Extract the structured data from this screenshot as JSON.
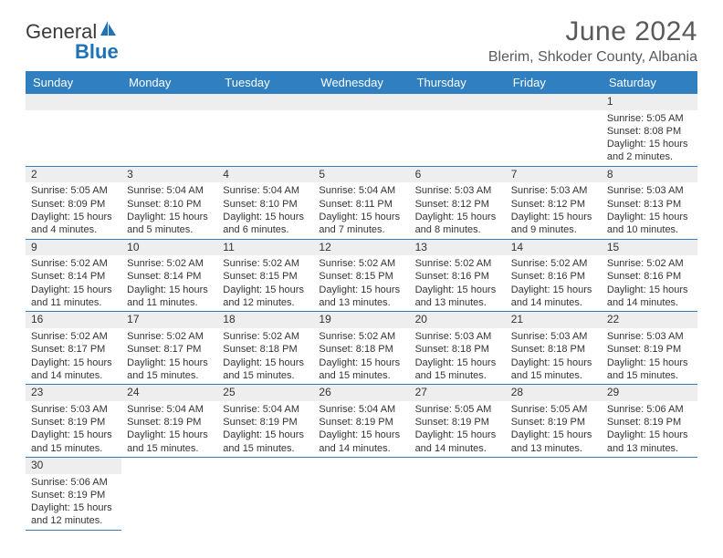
{
  "brand": {
    "part1": "General",
    "part2": "Blue"
  },
  "title": "June 2024",
  "location": "Blerim, Shkoder County, Albania",
  "colors": {
    "header_bg": "#2f7fc1",
    "header_text": "#ffffff",
    "daynum_bg": "#eeeeee",
    "border": "#2f7fc1",
    "brand_blue": "#1d72b8",
    "text": "#333333"
  },
  "day_headers": [
    "Sunday",
    "Monday",
    "Tuesday",
    "Wednesday",
    "Thursday",
    "Friday",
    "Saturday"
  ],
  "weeks": [
    [
      null,
      null,
      null,
      null,
      null,
      null,
      {
        "n": "1",
        "sunrise": "Sunrise: 5:05 AM",
        "sunset": "Sunset: 8:08 PM",
        "daylight": "Daylight: 15 hours and 2 minutes."
      }
    ],
    [
      {
        "n": "2",
        "sunrise": "Sunrise: 5:05 AM",
        "sunset": "Sunset: 8:09 PM",
        "daylight": "Daylight: 15 hours and 4 minutes."
      },
      {
        "n": "3",
        "sunrise": "Sunrise: 5:04 AM",
        "sunset": "Sunset: 8:10 PM",
        "daylight": "Daylight: 15 hours and 5 minutes."
      },
      {
        "n": "4",
        "sunrise": "Sunrise: 5:04 AM",
        "sunset": "Sunset: 8:10 PM",
        "daylight": "Daylight: 15 hours and 6 minutes."
      },
      {
        "n": "5",
        "sunrise": "Sunrise: 5:04 AM",
        "sunset": "Sunset: 8:11 PM",
        "daylight": "Daylight: 15 hours and 7 minutes."
      },
      {
        "n": "6",
        "sunrise": "Sunrise: 5:03 AM",
        "sunset": "Sunset: 8:12 PM",
        "daylight": "Daylight: 15 hours and 8 minutes."
      },
      {
        "n": "7",
        "sunrise": "Sunrise: 5:03 AM",
        "sunset": "Sunset: 8:12 PM",
        "daylight": "Daylight: 15 hours and 9 minutes."
      },
      {
        "n": "8",
        "sunrise": "Sunrise: 5:03 AM",
        "sunset": "Sunset: 8:13 PM",
        "daylight": "Daylight: 15 hours and 10 minutes."
      }
    ],
    [
      {
        "n": "9",
        "sunrise": "Sunrise: 5:02 AM",
        "sunset": "Sunset: 8:14 PM",
        "daylight": "Daylight: 15 hours and 11 minutes."
      },
      {
        "n": "10",
        "sunrise": "Sunrise: 5:02 AM",
        "sunset": "Sunset: 8:14 PM",
        "daylight": "Daylight: 15 hours and 11 minutes."
      },
      {
        "n": "11",
        "sunrise": "Sunrise: 5:02 AM",
        "sunset": "Sunset: 8:15 PM",
        "daylight": "Daylight: 15 hours and 12 minutes."
      },
      {
        "n": "12",
        "sunrise": "Sunrise: 5:02 AM",
        "sunset": "Sunset: 8:15 PM",
        "daylight": "Daylight: 15 hours and 13 minutes."
      },
      {
        "n": "13",
        "sunrise": "Sunrise: 5:02 AM",
        "sunset": "Sunset: 8:16 PM",
        "daylight": "Daylight: 15 hours and 13 minutes."
      },
      {
        "n": "14",
        "sunrise": "Sunrise: 5:02 AM",
        "sunset": "Sunset: 8:16 PM",
        "daylight": "Daylight: 15 hours and 14 minutes."
      },
      {
        "n": "15",
        "sunrise": "Sunrise: 5:02 AM",
        "sunset": "Sunset: 8:16 PM",
        "daylight": "Daylight: 15 hours and 14 minutes."
      }
    ],
    [
      {
        "n": "16",
        "sunrise": "Sunrise: 5:02 AM",
        "sunset": "Sunset: 8:17 PM",
        "daylight": "Daylight: 15 hours and 14 minutes."
      },
      {
        "n": "17",
        "sunrise": "Sunrise: 5:02 AM",
        "sunset": "Sunset: 8:17 PM",
        "daylight": "Daylight: 15 hours and 15 minutes."
      },
      {
        "n": "18",
        "sunrise": "Sunrise: 5:02 AM",
        "sunset": "Sunset: 8:18 PM",
        "daylight": "Daylight: 15 hours and 15 minutes."
      },
      {
        "n": "19",
        "sunrise": "Sunrise: 5:02 AM",
        "sunset": "Sunset: 8:18 PM",
        "daylight": "Daylight: 15 hours and 15 minutes."
      },
      {
        "n": "20",
        "sunrise": "Sunrise: 5:03 AM",
        "sunset": "Sunset: 8:18 PM",
        "daylight": "Daylight: 15 hours and 15 minutes."
      },
      {
        "n": "21",
        "sunrise": "Sunrise: 5:03 AM",
        "sunset": "Sunset: 8:18 PM",
        "daylight": "Daylight: 15 hours and 15 minutes."
      },
      {
        "n": "22",
        "sunrise": "Sunrise: 5:03 AM",
        "sunset": "Sunset: 8:19 PM",
        "daylight": "Daylight: 15 hours and 15 minutes."
      }
    ],
    [
      {
        "n": "23",
        "sunrise": "Sunrise: 5:03 AM",
        "sunset": "Sunset: 8:19 PM",
        "daylight": "Daylight: 15 hours and 15 minutes."
      },
      {
        "n": "24",
        "sunrise": "Sunrise: 5:04 AM",
        "sunset": "Sunset: 8:19 PM",
        "daylight": "Daylight: 15 hours and 15 minutes."
      },
      {
        "n": "25",
        "sunrise": "Sunrise: 5:04 AM",
        "sunset": "Sunset: 8:19 PM",
        "daylight": "Daylight: 15 hours and 15 minutes."
      },
      {
        "n": "26",
        "sunrise": "Sunrise: 5:04 AM",
        "sunset": "Sunset: 8:19 PM",
        "daylight": "Daylight: 15 hours and 14 minutes."
      },
      {
        "n": "27",
        "sunrise": "Sunrise: 5:05 AM",
        "sunset": "Sunset: 8:19 PM",
        "daylight": "Daylight: 15 hours and 14 minutes."
      },
      {
        "n": "28",
        "sunrise": "Sunrise: 5:05 AM",
        "sunset": "Sunset: 8:19 PM",
        "daylight": "Daylight: 15 hours and 13 minutes."
      },
      {
        "n": "29",
        "sunrise": "Sunrise: 5:06 AM",
        "sunset": "Sunset: 8:19 PM",
        "daylight": "Daylight: 15 hours and 13 minutes."
      }
    ],
    [
      {
        "n": "30",
        "sunrise": "Sunrise: 5:06 AM",
        "sunset": "Sunset: 8:19 PM",
        "daylight": "Daylight: 15 hours and 12 minutes."
      },
      null,
      null,
      null,
      null,
      null,
      null
    ]
  ]
}
